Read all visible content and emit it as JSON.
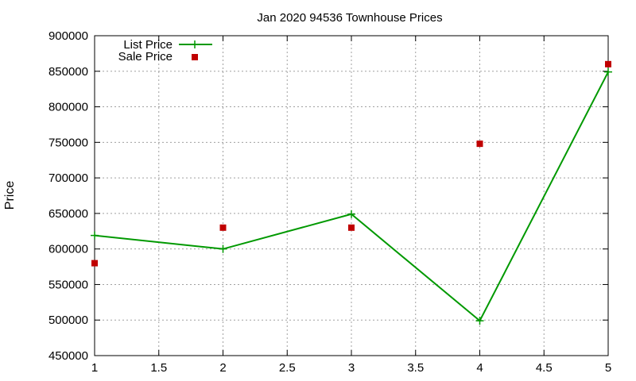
{
  "chart_data": {
    "type": "line",
    "title": "Jan 2020 94536 Townhouse Prices",
    "xlabel": "",
    "ylabel": "Price",
    "xlim": [
      1,
      5
    ],
    "ylim": [
      450000,
      900000
    ],
    "x_ticks": [
      1,
      1.5,
      2,
      2.5,
      3,
      3.5,
      4,
      4.5,
      5
    ],
    "y_ticks": [
      450000,
      500000,
      550000,
      600000,
      650000,
      700000,
      750000,
      800000,
      850000,
      900000
    ],
    "grid": true,
    "legend_position": "top-left",
    "series": [
      {
        "name": "List Price",
        "style": "linespoints",
        "color": "#009900",
        "x": [
          1,
          2,
          3,
          4,
          5
        ],
        "y": [
          619000,
          600000,
          649000,
          499000,
          849000
        ]
      },
      {
        "name": "Sale Price",
        "style": "points",
        "color": "#c00000",
        "x": [
          1,
          2,
          3,
          4,
          5
        ],
        "y": [
          580000,
          630000,
          630000,
          748000,
          860000
        ]
      }
    ]
  }
}
